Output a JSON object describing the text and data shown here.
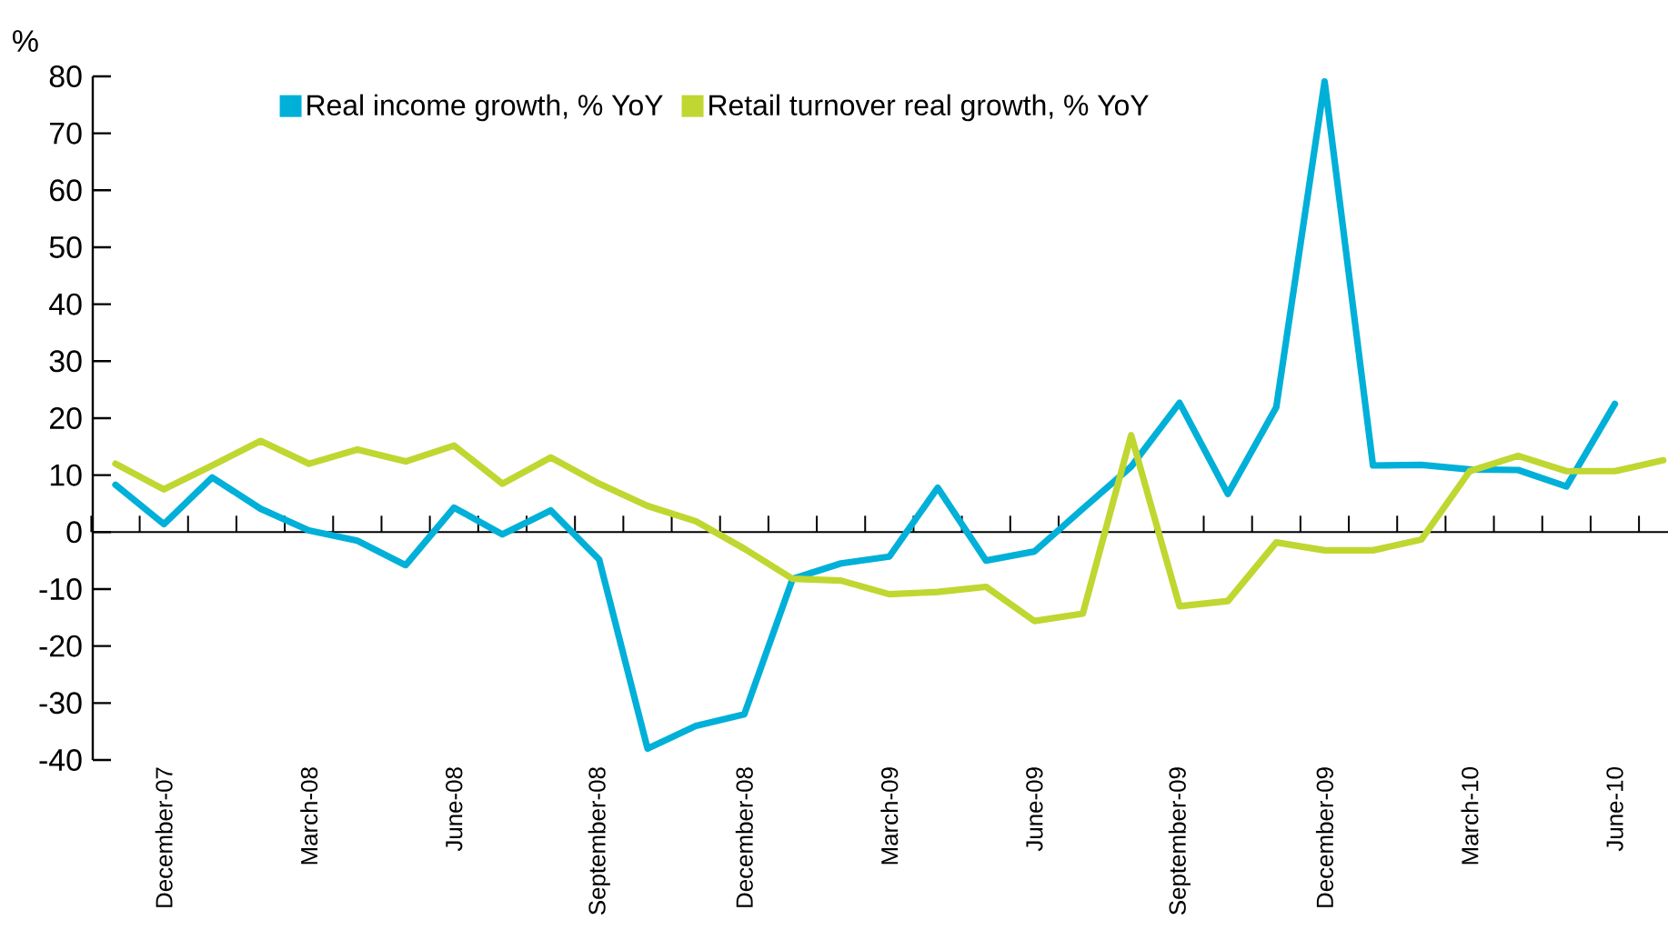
{
  "chart_data": {
    "type": "line",
    "ylabel": "%",
    "categories": [
      null,
      "December-07",
      null,
      null,
      "March-08",
      null,
      null,
      "June-08",
      null,
      null,
      "September-08",
      null,
      null,
      "December-08",
      null,
      null,
      "March-09",
      null,
      null,
      "June-09",
      null,
      null,
      "September-09",
      null,
      null,
      "December-09",
      null,
      null,
      "March-10",
      null,
      null,
      "June-10",
      null
    ],
    "series": [
      {
        "name": "Real income growth, % YoY",
        "color": "#00b0d8",
        "values": [
          8.3,
          1.4,
          9.6,
          4.1,
          0.3,
          -1.5,
          -5.8,
          4.3,
          -0.4,
          3.8,
          -4.8,
          -38,
          -34,
          -32,
          -8.2,
          -5.5,
          -4.3,
          7.8,
          -5,
          -3.4,
          4.1,
          11.5,
          22.7,
          6.7,
          21.9,
          79.1,
          11.7,
          11.8,
          11,
          10.9,
          8,
          22.5,
          null
        ]
      },
      {
        "name": "Retail turnover real growth, % YoY",
        "color": "#bfd730",
        "values": [
          12,
          7.5,
          11.7,
          16,
          12,
          14.5,
          12.4,
          15.2,
          8.5,
          13.1,
          8.5,
          4.6,
          1.9,
          -2.9,
          -8.2,
          -8.5,
          -10.9,
          -10.5,
          -9.6,
          -15.6,
          -14.3,
          17,
          -13,
          -12.1,
          -1.8,
          -3.2,
          -3.2,
          -1.3,
          10.7,
          13.4,
          10.7,
          10.7,
          12.6
        ]
      }
    ],
    "ylim": [
      -40,
      80
    ],
    "yticks": [
      -40,
      -30,
      -20,
      -10,
      0,
      10,
      20,
      30,
      40,
      50,
      60,
      70,
      80
    ],
    "ref_lines": [
      {
        "axis": "y",
        "value": 0,
        "color": "#000000"
      }
    ],
    "grid": false,
    "legend": "top",
    "marker": "none",
    "line_style": "solid"
  }
}
